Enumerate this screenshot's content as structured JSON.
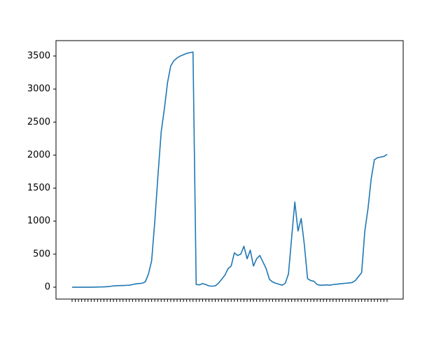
{
  "chart_data": {
    "type": "line",
    "categories": [
      null,
      null,
      null,
      null,
      null,
      null,
      null,
      null,
      null,
      null,
      null,
      null,
      null,
      null,
      null,
      null,
      null,
      null,
      null,
      null,
      null,
      null,
      null,
      null,
      null,
      null,
      null,
      null,
      null,
      null,
      null,
      null,
      null,
      null,
      null,
      null,
      null,
      null,
      null,
      null,
      null,
      null,
      null,
      null,
      null,
      null,
      null,
      null,
      null,
      null,
      null,
      null,
      null,
      null,
      null,
      null,
      null,
      null,
      null,
      null,
      null,
      null,
      null,
      null,
      null,
      null,
      null,
      null,
      null,
      null,
      null,
      null,
      null,
      null,
      null,
      null,
      null,
      null,
      null,
      null,
      null,
      null,
      null,
      null,
      null,
      null,
      null,
      null,
      null,
      null,
      null,
      null,
      null,
      null,
      null,
      null,
      null,
      null,
      null,
      null
    ],
    "series": [
      {
        "color": "#1f77b4",
        "values": [
          0,
          0,
          0,
          0,
          0,
          0,
          0,
          1,
          2,
          3,
          5,
          8,
          12,
          20,
          22,
          25,
          25,
          28,
          30,
          40,
          50,
          55,
          60,
          80,
          200,
          400,
          1000,
          1700,
          2350,
          2700,
          3100,
          3350,
          3430,
          3470,
          3500,
          3520,
          3540,
          3550,
          3560,
          40,
          35,
          55,
          40,
          20,
          15,
          20,
          60,
          120,
          180,
          280,
          320,
          520,
          480,
          500,
          620,
          430,
          560,
          320,
          430,
          480,
          380,
          280,
          120,
          80,
          60,
          45,
          30,
          60,
          200,
          750,
          1290,
          850,
          1040,
          640,
          130,
          100,
          90,
          40,
          30,
          30,
          35,
          30,
          40,
          45,
          50,
          55,
          60,
          65,
          70,
          100,
          160,
          220,
          850,
          1190,
          1640,
          1930,
          1960,
          1970,
          1980,
          2010
        ]
      }
    ],
    "ylim": [
      -180,
      3733
    ],
    "yticks": [
      0,
      500,
      1000,
      1500,
      2000,
      2500,
      3000,
      3500
    ]
  }
}
